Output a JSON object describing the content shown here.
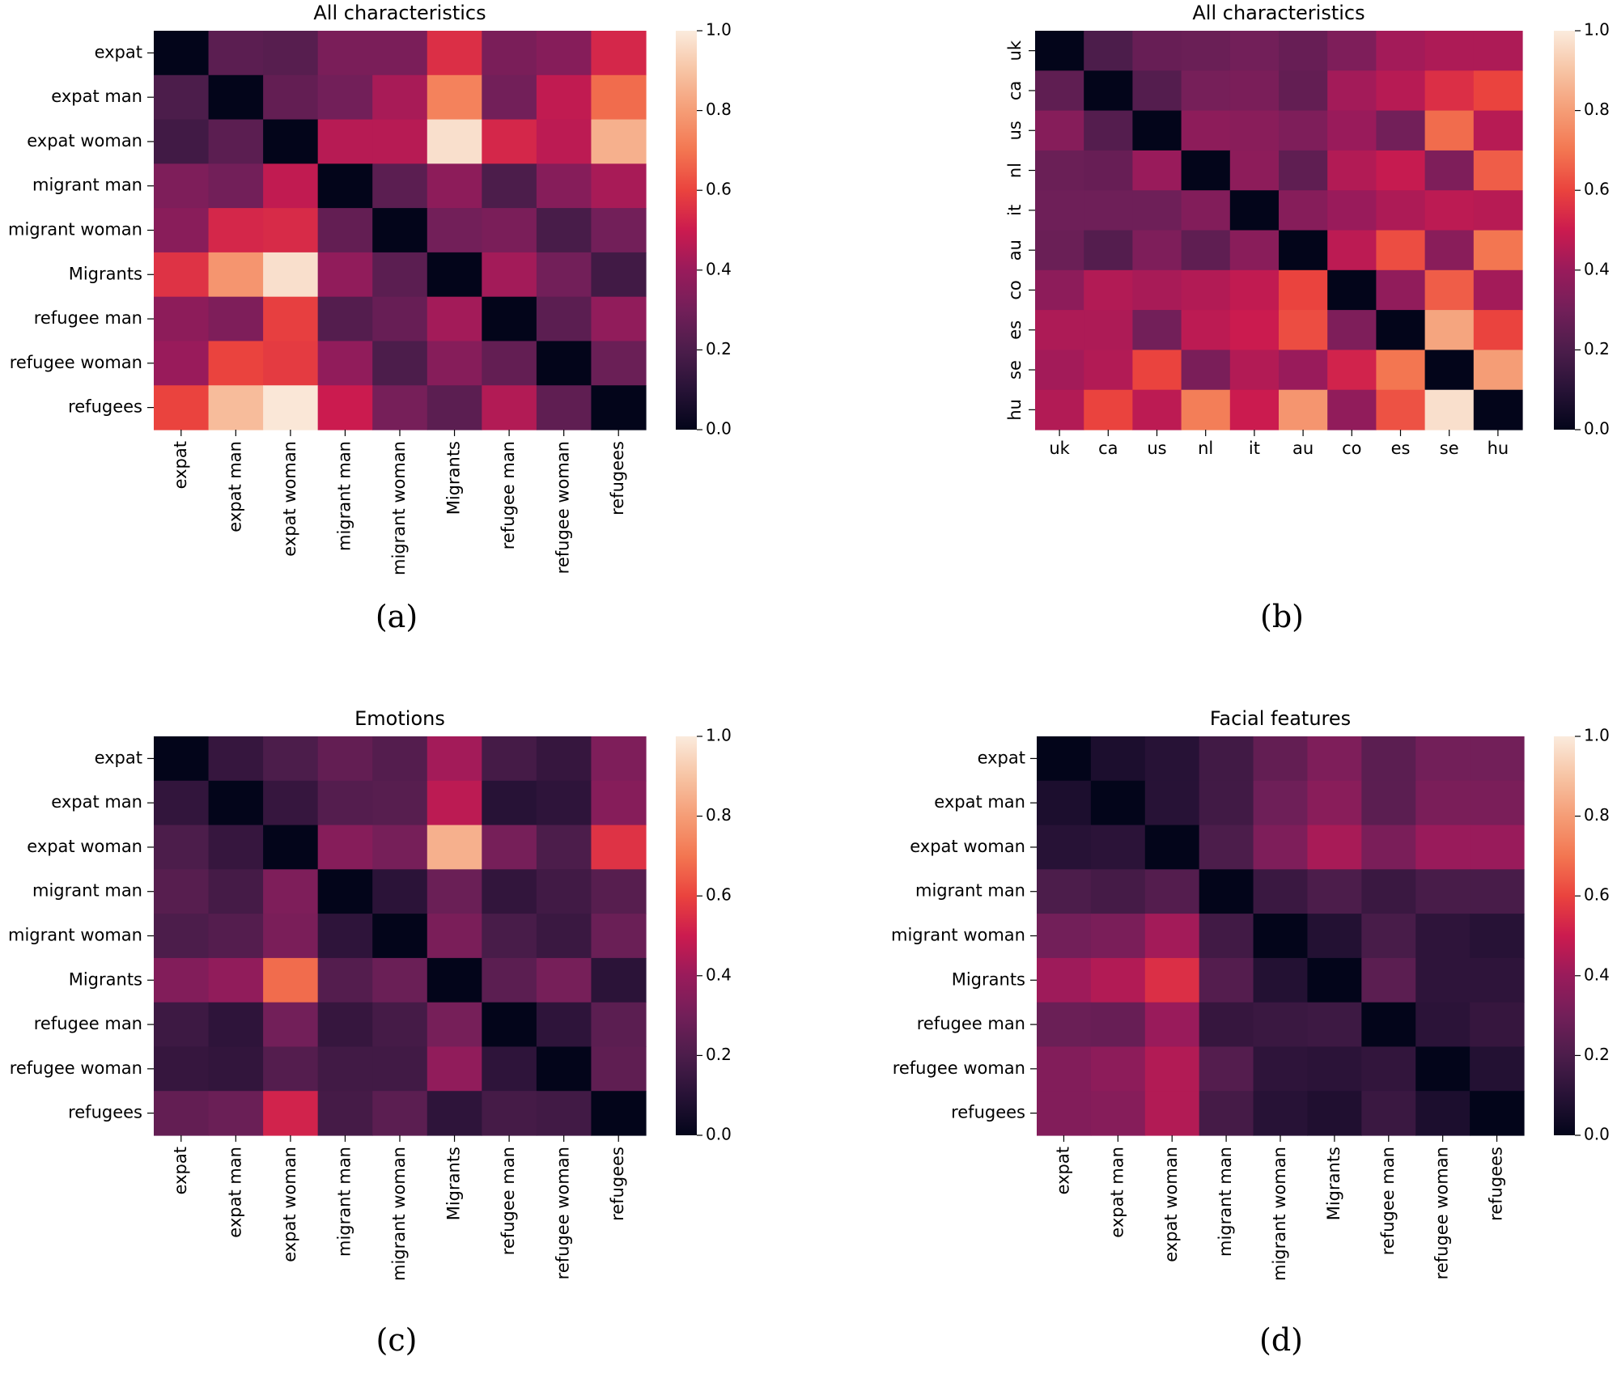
{
  "chart_data": [
    {
      "id": "a",
      "type": "heatmap",
      "title": "All characteristics",
      "caption": "(a)",
      "row_labels": [
        "expat",
        "expat man",
        "expat woman",
        "migrant man",
        "migrant woman",
        "Migrants",
        "refugee man",
        "refugee woman",
        "refugees"
      ],
      "col_labels": [
        "expat",
        "expat man",
        "expat woman",
        "migrant man",
        "migrant woman",
        "Migrants",
        "refugee man",
        "refugee woman",
        "refugees"
      ],
      "values": [
        [
          0.0,
          0.24,
          0.23,
          0.32,
          0.32,
          0.55,
          0.32,
          0.35,
          0.53
        ],
        [
          0.2,
          0.0,
          0.26,
          0.3,
          0.43,
          0.73,
          0.3,
          0.48,
          0.68
        ],
        [
          0.17,
          0.24,
          0.0,
          0.46,
          0.46,
          0.97,
          0.53,
          0.47,
          0.85
        ],
        [
          0.33,
          0.3,
          0.48,
          0.0,
          0.24,
          0.37,
          0.2,
          0.35,
          0.43
        ],
        [
          0.36,
          0.53,
          0.54,
          0.26,
          0.0,
          0.3,
          0.32,
          0.19,
          0.3
        ],
        [
          0.56,
          0.78,
          0.97,
          0.38,
          0.24,
          0.0,
          0.42,
          0.3,
          0.17
        ],
        [
          0.37,
          0.33,
          0.59,
          0.22,
          0.27,
          0.42,
          0.0,
          0.24,
          0.38
        ],
        [
          0.4,
          0.6,
          0.58,
          0.38,
          0.2,
          0.35,
          0.26,
          0.0,
          0.28
        ],
        [
          0.6,
          0.88,
          0.99,
          0.5,
          0.31,
          0.24,
          0.45,
          0.25,
          0.0
        ]
      ],
      "vmin": 0.0,
      "vmax": 1.0,
      "colorbar_ticks": [
        "0.0",
        "0.2",
        "0.4",
        "0.6",
        "0.8",
        "1.0"
      ]
    },
    {
      "id": "b",
      "type": "heatmap",
      "title": "All characteristics",
      "caption": "(b)",
      "row_labels": [
        "uk",
        "ca",
        "us",
        "nl",
        "it",
        "au",
        "co",
        "es",
        "se",
        "hu"
      ],
      "col_labels": [
        "uk",
        "ca",
        "us",
        "nl",
        "it",
        "au",
        "co",
        "es",
        "se",
        "hu"
      ],
      "values": [
        [
          0.0,
          0.2,
          0.27,
          0.28,
          0.3,
          0.27,
          0.33,
          0.42,
          0.44,
          0.44
        ],
        [
          0.25,
          0.0,
          0.22,
          0.31,
          0.32,
          0.26,
          0.42,
          0.46,
          0.55,
          0.6
        ],
        [
          0.35,
          0.22,
          0.0,
          0.37,
          0.36,
          0.33,
          0.4,
          0.3,
          0.68,
          0.46
        ],
        [
          0.28,
          0.27,
          0.4,
          0.0,
          0.37,
          0.25,
          0.45,
          0.49,
          0.33,
          0.65
        ],
        [
          0.29,
          0.29,
          0.29,
          0.34,
          0.0,
          0.35,
          0.4,
          0.44,
          0.47,
          0.46
        ],
        [
          0.28,
          0.22,
          0.33,
          0.25,
          0.36,
          0.0,
          0.47,
          0.62,
          0.36,
          0.7
        ],
        [
          0.37,
          0.45,
          0.43,
          0.45,
          0.48,
          0.6,
          0.0,
          0.38,
          0.65,
          0.42
        ],
        [
          0.44,
          0.44,
          0.3,
          0.47,
          0.5,
          0.62,
          0.33,
          0.0,
          0.82,
          0.6
        ],
        [
          0.42,
          0.45,
          0.6,
          0.32,
          0.45,
          0.4,
          0.52,
          0.7,
          0.0,
          0.8
        ],
        [
          0.45,
          0.6,
          0.47,
          0.72,
          0.5,
          0.78,
          0.38,
          0.63,
          0.97,
          0.0
        ]
      ],
      "vmin": 0.0,
      "vmax": 1.0,
      "colorbar_ticks": [
        "0.0",
        "0.2",
        "0.4",
        "0.6",
        "0.8",
        "1.0"
      ]
    },
    {
      "id": "c",
      "type": "heatmap",
      "title": "Emotions",
      "caption": "(c)",
      "row_labels": [
        "expat",
        "expat man",
        "expat woman",
        "migrant man",
        "migrant woman",
        "Migrants",
        "refugee man",
        "refugee woman",
        "refugees"
      ],
      "col_labels": [
        "expat",
        "expat man",
        "expat woman",
        "migrant man",
        "migrant woman",
        "Migrants",
        "refugee man",
        "refugee woman",
        "refugees"
      ],
      "values": [
        [
          0.0,
          0.14,
          0.2,
          0.26,
          0.22,
          0.42,
          0.18,
          0.14,
          0.33
        ],
        [
          0.13,
          0.0,
          0.14,
          0.22,
          0.23,
          0.47,
          0.1,
          0.12,
          0.35
        ],
        [
          0.2,
          0.14,
          0.0,
          0.35,
          0.31,
          0.85,
          0.31,
          0.2,
          0.56
        ],
        [
          0.23,
          0.18,
          0.33,
          0.0,
          0.11,
          0.28,
          0.13,
          0.17,
          0.23
        ],
        [
          0.2,
          0.22,
          0.32,
          0.12,
          0.0,
          0.32,
          0.19,
          0.15,
          0.28
        ],
        [
          0.34,
          0.38,
          0.68,
          0.22,
          0.28,
          0.0,
          0.24,
          0.31,
          0.11
        ],
        [
          0.16,
          0.12,
          0.3,
          0.14,
          0.18,
          0.31,
          0.0,
          0.12,
          0.24
        ],
        [
          0.14,
          0.13,
          0.22,
          0.17,
          0.17,
          0.38,
          0.12,
          0.0,
          0.25
        ],
        [
          0.26,
          0.28,
          0.52,
          0.18,
          0.24,
          0.12,
          0.18,
          0.17,
          0.0
        ]
      ],
      "vmin": 0.0,
      "vmax": 1.0,
      "colorbar_ticks": [
        "0.0",
        "0.2",
        "0.4",
        "0.6",
        "0.8",
        "1.0"
      ]
    },
    {
      "id": "d",
      "type": "heatmap",
      "title": "Facial features",
      "caption": "(d)",
      "row_labels": [
        "expat",
        "expat man",
        "expat woman",
        "migrant man",
        "migrant woman",
        "Migrants",
        "refugee man",
        "refugee woman",
        "refugees"
      ],
      "col_labels": [
        "expat",
        "expat man",
        "expat woman",
        "migrant man",
        "migrant woman",
        "Migrants",
        "refugee man",
        "refugee woman",
        "refugees"
      ],
      "values": [
        [
          0.0,
          0.07,
          0.1,
          0.17,
          0.26,
          0.33,
          0.24,
          0.3,
          0.3
        ],
        [
          0.07,
          0.0,
          0.1,
          0.17,
          0.29,
          0.36,
          0.24,
          0.32,
          0.32
        ],
        [
          0.1,
          0.11,
          0.0,
          0.2,
          0.33,
          0.43,
          0.32,
          0.4,
          0.4
        ],
        [
          0.2,
          0.18,
          0.22,
          0.0,
          0.15,
          0.2,
          0.15,
          0.19,
          0.19
        ],
        [
          0.3,
          0.32,
          0.42,
          0.17,
          0.0,
          0.09,
          0.19,
          0.12,
          0.1
        ],
        [
          0.41,
          0.45,
          0.55,
          0.22,
          0.09,
          0.0,
          0.24,
          0.12,
          0.12
        ],
        [
          0.28,
          0.27,
          0.4,
          0.14,
          0.15,
          0.16,
          0.0,
          0.11,
          0.14
        ],
        [
          0.34,
          0.37,
          0.45,
          0.22,
          0.12,
          0.11,
          0.13,
          0.0,
          0.09
        ],
        [
          0.34,
          0.35,
          0.45,
          0.18,
          0.1,
          0.08,
          0.15,
          0.07,
          0.0
        ]
      ],
      "vmin": 0.0,
      "vmax": 1.0,
      "colorbar_ticks": [
        "0.0",
        "0.2",
        "0.4",
        "0.6",
        "0.8",
        "1.0"
      ]
    }
  ]
}
